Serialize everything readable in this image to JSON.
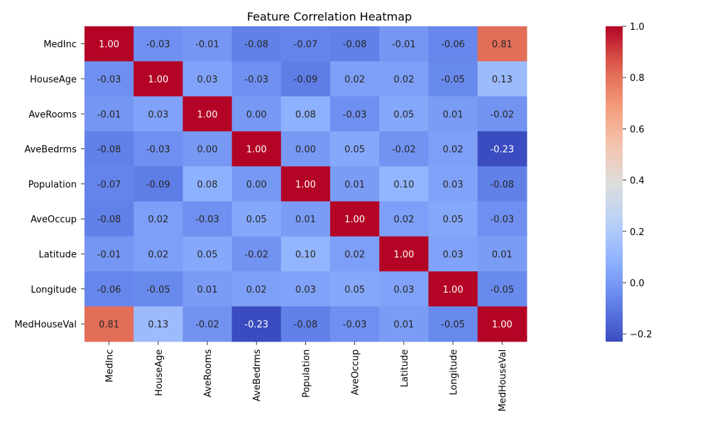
{
  "chart_data": {
    "type": "heatmap",
    "title": "Feature Correlation Heatmap",
    "xlabel": "",
    "ylabel": "",
    "rows": [
      "MedInc",
      "HouseAge",
      "AveRooms",
      "AveBedrms",
      "Population",
      "AveOccup",
      "Latitude",
      "Longitude",
      "MedHouseVal"
    ],
    "columns": [
      "MedInc",
      "HouseAge",
      "AveRooms",
      "AveBedrms",
      "Population",
      "AveOccup",
      "Latitude",
      "Longitude",
      "MedHouseVal"
    ],
    "values": [
      [
        1.0,
        -0.03,
        -0.01,
        -0.08,
        -0.07,
        -0.08,
        -0.01,
        -0.06,
        0.81
      ],
      [
        -0.03,
        1.0,
        0.03,
        -0.03,
        -0.09,
        0.02,
        0.02,
        -0.05,
        0.13
      ],
      [
        -0.01,
        0.03,
        1.0,
        0.0,
        0.08,
        -0.03,
        0.05,
        0.01,
        -0.02
      ],
      [
        -0.08,
        -0.03,
        0.0,
        1.0,
        0.0,
        0.05,
        -0.02,
        0.02,
        -0.23
      ],
      [
        -0.07,
        -0.09,
        0.08,
        0.0,
        1.0,
        0.01,
        0.1,
        0.03,
        -0.08
      ],
      [
        -0.08,
        0.02,
        -0.03,
        0.05,
        0.01,
        1.0,
        0.02,
        0.05,
        -0.03
      ],
      [
        -0.01,
        0.02,
        0.05,
        -0.02,
        0.1,
        0.02,
        1.0,
        0.03,
        0.01
      ],
      [
        -0.06,
        -0.05,
        0.01,
        0.02,
        0.03,
        0.05,
        0.03,
        1.0,
        -0.05
      ],
      [
        0.81,
        0.13,
        -0.02,
        -0.23,
        -0.08,
        -0.03,
        0.01,
        -0.05,
        1.0
      ]
    ],
    "value_format": "0.00",
    "colormap": "coolwarm",
    "color_range": [
      -0.23,
      1.0
    ],
    "colorbar": {
      "ticks": [
        -0.2,
        0.0,
        0.2,
        0.4,
        0.6,
        0.8,
        1.0
      ],
      "tick_labels": [
        "−0.2",
        "0.0",
        "0.2",
        "0.4",
        "0.6",
        "0.8",
        "1.0"
      ],
      "placement": "right"
    },
    "grid": false,
    "annotated": true
  }
}
